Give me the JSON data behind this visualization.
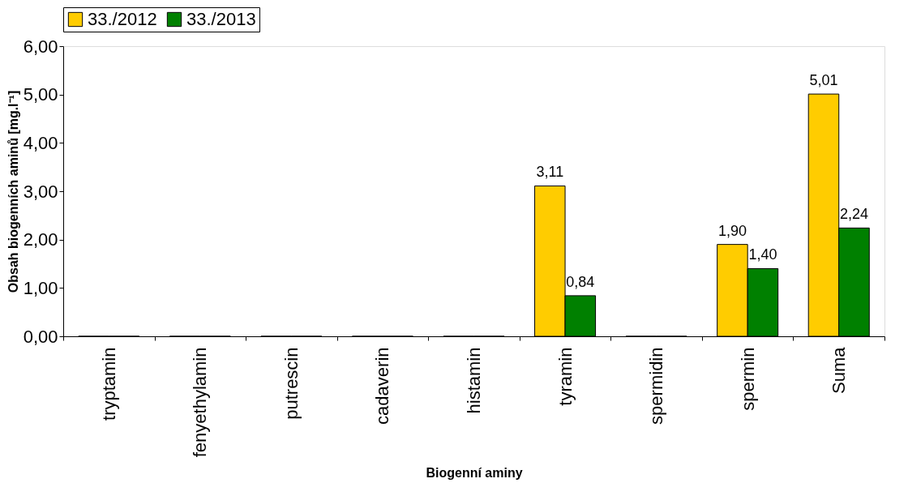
{
  "chart_data": {
    "type": "bar",
    "xlabel": "Biogenní aminy",
    "ylabel": "Obsah biogenních aminů [mg.l⁻¹]",
    "categories": [
      "tryptamin",
      "fenyethylamin",
      "putrescin",
      "cadaverin",
      "histamin",
      "tyramin",
      "spermidin",
      "spermin",
      "Suma"
    ],
    "series": [
      {
        "name": "33./2012",
        "color": "#ffcc00",
        "values": [
          0,
          0,
          0,
          0,
          0,
          3.11,
          0,
          1.9,
          5.01
        ],
        "value_labels": [
          null,
          null,
          null,
          null,
          null,
          "3,11",
          null,
          "1,90",
          "5,01"
        ]
      },
      {
        "name": "33./2013",
        "color": "#008000",
        "values": [
          0,
          0,
          0,
          0,
          0,
          0.84,
          0,
          1.4,
          2.24
        ],
        "value_labels": [
          null,
          null,
          null,
          null,
          null,
          "0,84",
          null,
          "1,40",
          "2,24"
        ]
      }
    ],
    "ylim": [
      0,
      6
    ],
    "yticks": [
      {
        "value": 0,
        "label": "0,00"
      },
      {
        "value": 1,
        "label": "1,00"
      },
      {
        "value": 2,
        "label": "2,00"
      },
      {
        "value": 3,
        "label": "3,00"
      },
      {
        "value": 4,
        "label": "4,00"
      },
      {
        "value": 5,
        "label": "5,00"
      },
      {
        "value": 6,
        "label": "6,00"
      }
    ],
    "grid": false,
    "legend": "top"
  }
}
